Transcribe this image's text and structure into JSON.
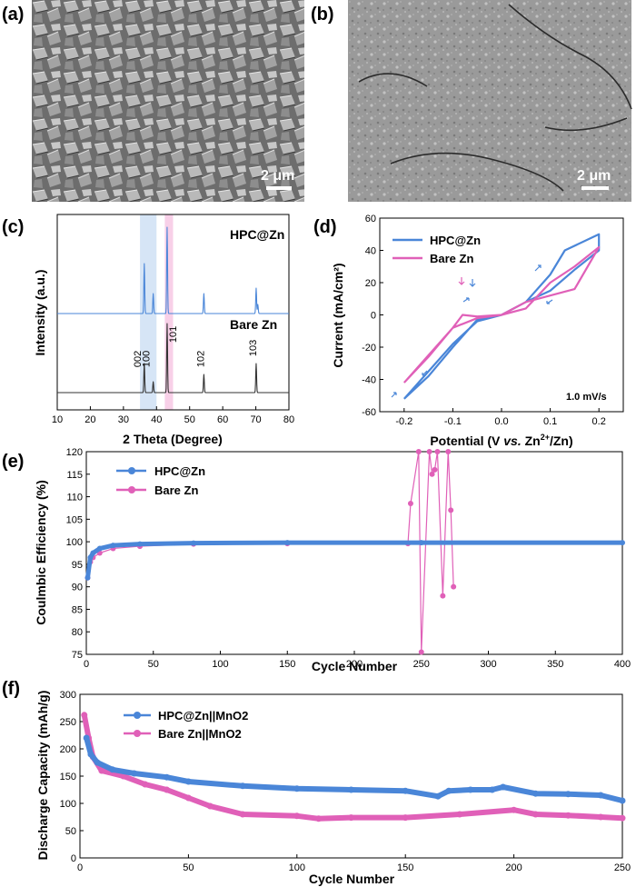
{
  "panels": {
    "a": {
      "label": "(a)",
      "scale_text": "2 μm"
    },
    "b": {
      "label": "(b)",
      "scale_text": "2 μm"
    },
    "c": {
      "label": "(c)"
    },
    "d": {
      "label": "(d)"
    },
    "e": {
      "label": "(e)"
    },
    "f": {
      "label": "(f)"
    }
  },
  "colors": {
    "blue": "#4a86d8",
    "pink": "#e060b8",
    "dark": "#333333",
    "hl_blue": "#cfe0f5",
    "hl_pink": "#f7c8e4"
  },
  "chart_data": [
    {
      "id": "c",
      "type": "line",
      "xlabel": "2 Theta (Degree)",
      "ylabel": "Intensity (a.u.)",
      "xlim": [
        10,
        80
      ],
      "xticks": [
        10,
        20,
        30,
        40,
        50,
        60,
        70,
        80
      ],
      "highlight_bands": [
        [
          35,
          40
        ],
        [
          42.5,
          45
        ]
      ],
      "series": [
        {
          "name": "HPC@Zn",
          "peaks": [
            [
              36.3,
              0.55
            ],
            [
              39.0,
              0.22
            ],
            [
              43.2,
              0.95
            ],
            [
              54.3,
              0.22
            ],
            [
              70.1,
              0.28
            ],
            [
              70.6,
              0.1
            ]
          ]
        },
        {
          "name": "Bare Zn",
          "peaks": [
            [
              36.3,
              0.4
            ],
            [
              39.0,
              0.15
            ],
            [
              43.2,
              0.95
            ],
            [
              54.3,
              0.25
            ],
            [
              70.1,
              0.4
            ]
          ]
        }
      ],
      "peak_labels": [
        "002",
        "100",
        "101",
        "102",
        "103"
      ],
      "peak_label_x": [
        36.3,
        39.0,
        43.2,
        54.3,
        70.1
      ]
    },
    {
      "id": "d",
      "type": "line",
      "xlabel_parts": [
        "Potential (V ",
        "vs.",
        " Zn",
        "2+",
        "/Zn)"
      ],
      "ylabel": "Current (mA/cm²)",
      "xlim": [
        -0.25,
        0.25
      ],
      "ylim": [
        -60,
        60
      ],
      "xticks": [
        -0.2,
        -0.1,
        0.0,
        0.1,
        0.2
      ],
      "xtick_labels": [
        "-0.2",
        "-0.1",
        "0.0",
        "0.1",
        "0.2"
      ],
      "yticks": [
        -60,
        -40,
        -20,
        0,
        20,
        40,
        60
      ],
      "annotation": "1.0 mV/s",
      "series": [
        {
          "name": "HPC@Zn",
          "x": [
            -0.2,
            -0.15,
            -0.1,
            -0.05,
            0.0,
            0.05,
            0.1,
            0.13,
            0.2,
            0.2,
            0.15,
            0.1,
            0.05,
            0.0,
            -0.05,
            -0.1,
            -0.15,
            -0.2
          ],
          "y": [
            -52,
            -35,
            -18,
            -4,
            0,
            8,
            25,
            40,
            50,
            40,
            28,
            15,
            8,
            0,
            -3,
            -20,
            -38,
            -52
          ]
        },
        {
          "name": "Bare Zn",
          "x": [
            -0.2,
            -0.15,
            -0.1,
            -0.08,
            -0.05,
            0.0,
            0.05,
            0.1,
            0.15,
            0.2,
            0.2,
            0.15,
            0.1,
            0.05,
            0.0,
            -0.05,
            -0.1,
            -0.15,
            -0.2
          ],
          "y": [
            -42,
            -25,
            -8,
            0,
            -1,
            0,
            4,
            20,
            30,
            42,
            42,
            16,
            12,
            8,
            0,
            -2,
            -8,
            -26,
            -42
          ]
        }
      ]
    },
    {
      "id": "e",
      "type": "scatter",
      "xlabel": "Cycle Number",
      "ylabel": "Coulmbic Efficiency (%)",
      "xlim": [
        0,
        400
      ],
      "ylim": [
        75,
        120
      ],
      "xticks": [
        0,
        50,
        100,
        150,
        200,
        250,
        300,
        350,
        400
      ],
      "yticks": [
        75,
        80,
        85,
        90,
        95,
        100,
        105,
        110,
        115,
        120
      ],
      "series": [
        {
          "name": "HPC@Zn",
          "x": [
            1,
            3,
            5,
            10,
            20,
            40,
            80,
            150,
            250,
            400
          ],
          "y": [
            92,
            96.5,
            97.5,
            98.5,
            99.2,
            99.5,
            99.7,
            99.8,
            99.8,
            99.8
          ]
        },
        {
          "name": "Bare Zn",
          "x": [
            1,
            3,
            5,
            10,
            20,
            40,
            80,
            150,
            240,
            242,
            248,
            250,
            256,
            258,
            260,
            262,
            266,
            270,
            272,
            274
          ],
          "y": [
            92,
            95.5,
            96.5,
            97.5,
            98.5,
            99,
            99.5,
            99.6,
            99.6,
            108.5,
            120,
            75.5,
            120,
            115,
            116,
            120,
            88,
            120,
            107,
            90
          ]
        }
      ]
    },
    {
      "id": "f",
      "type": "scatter",
      "xlabel": "Cycle Number",
      "ylabel": "Discharge Capacity (mAh/g)",
      "xlim": [
        0,
        250
      ],
      "ylim": [
        0,
        300
      ],
      "xticks": [
        0,
        50,
        100,
        150,
        200,
        250
      ],
      "yticks": [
        0,
        50,
        100,
        150,
        200,
        250,
        300
      ],
      "series": [
        {
          "name": "HPC@Zn||MnO2",
          "x": [
            3,
            5,
            8,
            15,
            25,
            40,
            50,
            75,
            100,
            125,
            150,
            165,
            170,
            180,
            190,
            195,
            210,
            225,
            240,
            250
          ],
          "y": [
            220,
            190,
            175,
            162,
            155,
            148,
            140,
            132,
            127,
            125,
            123,
            113,
            123,
            125,
            125,
            130,
            118,
            117,
            115,
            105
          ]
        },
        {
          "name": "Bare Zn||MnO2",
          "x": [
            2,
            4,
            6,
            10,
            20,
            30,
            40,
            50,
            60,
            75,
            100,
            110,
            125,
            150,
            175,
            200,
            210,
            225,
            240,
            250
          ],
          "y": [
            262,
            220,
            185,
            160,
            150,
            135,
            125,
            110,
            95,
            80,
            77,
            72,
            74,
            74,
            80,
            88,
            80,
            78,
            75,
            73
          ]
        }
      ]
    }
  ]
}
